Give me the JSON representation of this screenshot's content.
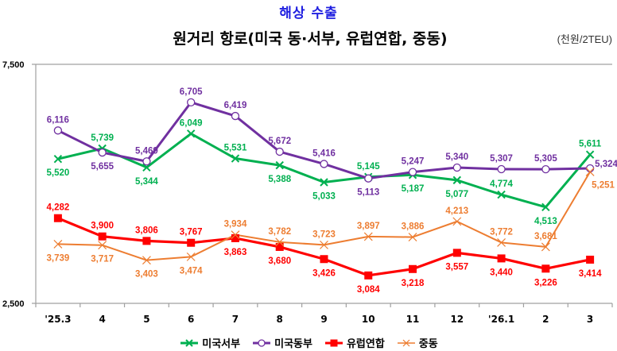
{
  "header": {
    "title": "해상 수출",
    "subtitle": "원거리 항로(미국 동·서부, 유럽연합, 중동)",
    "unit": "(천원/2TEU)"
  },
  "chart_data": {
    "type": "line",
    "title": "원거리 항로(미국 동·서부, 유럽연합, 중동)",
    "xlabel": "",
    "ylabel": "",
    "ylim": [
      2500,
      7500
    ],
    "y_ticks": [
      "7,500",
      "2,500"
    ],
    "y_tick_values": [
      7500,
      2500
    ],
    "grid": false,
    "legend_position": "bottom",
    "categories": [
      "'25.3",
      "4",
      "5",
      "6",
      "7",
      "8",
      "9",
      "10",
      "11",
      "12",
      "'26.1",
      "2",
      "3"
    ],
    "series": [
      {
        "name": "미국서부",
        "color": "#00b050",
        "marker": "x",
        "values": [
          5520,
          5739,
          5344,
          6049,
          5531,
          5388,
          5033,
          5145,
          5187,
          5077,
          4774,
          4513,
          5611
        ],
        "labels": [
          "5,520",
          "5,739",
          "5,344",
          "6,049",
          "5,531",
          "5,388",
          "5,033",
          "5,145",
          "5,187",
          "5,077",
          "4,774",
          "4,513",
          "5,611"
        ],
        "label_side": [
          "below",
          "above",
          "below",
          "above",
          "above",
          "below",
          "below",
          "above",
          "below",
          "below",
          "above",
          "below",
          "above"
        ]
      },
      {
        "name": "미국동부",
        "color": "#7030a0",
        "marker": "circle",
        "values": [
          6116,
          5655,
          5469,
          6705,
          6419,
          5672,
          5416,
          5113,
          5247,
          5340,
          5307,
          5305,
          5324
        ],
        "labels": [
          "6,116",
          "5,655",
          "5,469",
          "6,705",
          "6,419",
          "5,672",
          "5,416",
          "5,113",
          "5,247",
          "5,340",
          "5,307",
          "5,305",
          "5,324"
        ],
        "label_side": [
          "above",
          "below",
          "above",
          "above",
          "above",
          "above",
          "above",
          "below",
          "above",
          "above",
          "above",
          "above",
          "right"
        ]
      },
      {
        "name": "유럽연합",
        "color": "#ff0000",
        "marker": "square",
        "values": [
          4282,
          3900,
          3806,
          3767,
          3863,
          3680,
          3426,
          3084,
          3218,
          3557,
          3440,
          3226,
          3414
        ],
        "labels": [
          "4,282",
          "3,900",
          "3,806",
          "3,767",
          "3,863",
          "3,680",
          "3,426",
          "3,084",
          "3,218",
          "3,557",
          "3,440",
          "3,226",
          "3,414"
        ],
        "label_side": [
          "above",
          "above",
          "above",
          "above",
          "below",
          "below",
          "below",
          "below",
          "below",
          "below",
          "below",
          "below",
          "below"
        ]
      },
      {
        "name": "중동",
        "color": "#ed7d31",
        "marker": "x",
        "values": [
          3739,
          3717,
          3403,
          3474,
          3934,
          3782,
          3723,
          3897,
          3886,
          4213,
          3772,
          3681,
          5251
        ],
        "labels": [
          "3,739",
          "3,717",
          "3,403",
          "3,474",
          "3,934",
          "3,782",
          "3,723",
          "3,897",
          "3,886",
          "4,213",
          "3,772",
          "3,681",
          "5,251"
        ],
        "label_side": [
          "below",
          "below",
          "below",
          "below",
          "above",
          "above",
          "above",
          "above",
          "above",
          "above",
          "above",
          "above",
          "below-right"
        ]
      }
    ]
  }
}
